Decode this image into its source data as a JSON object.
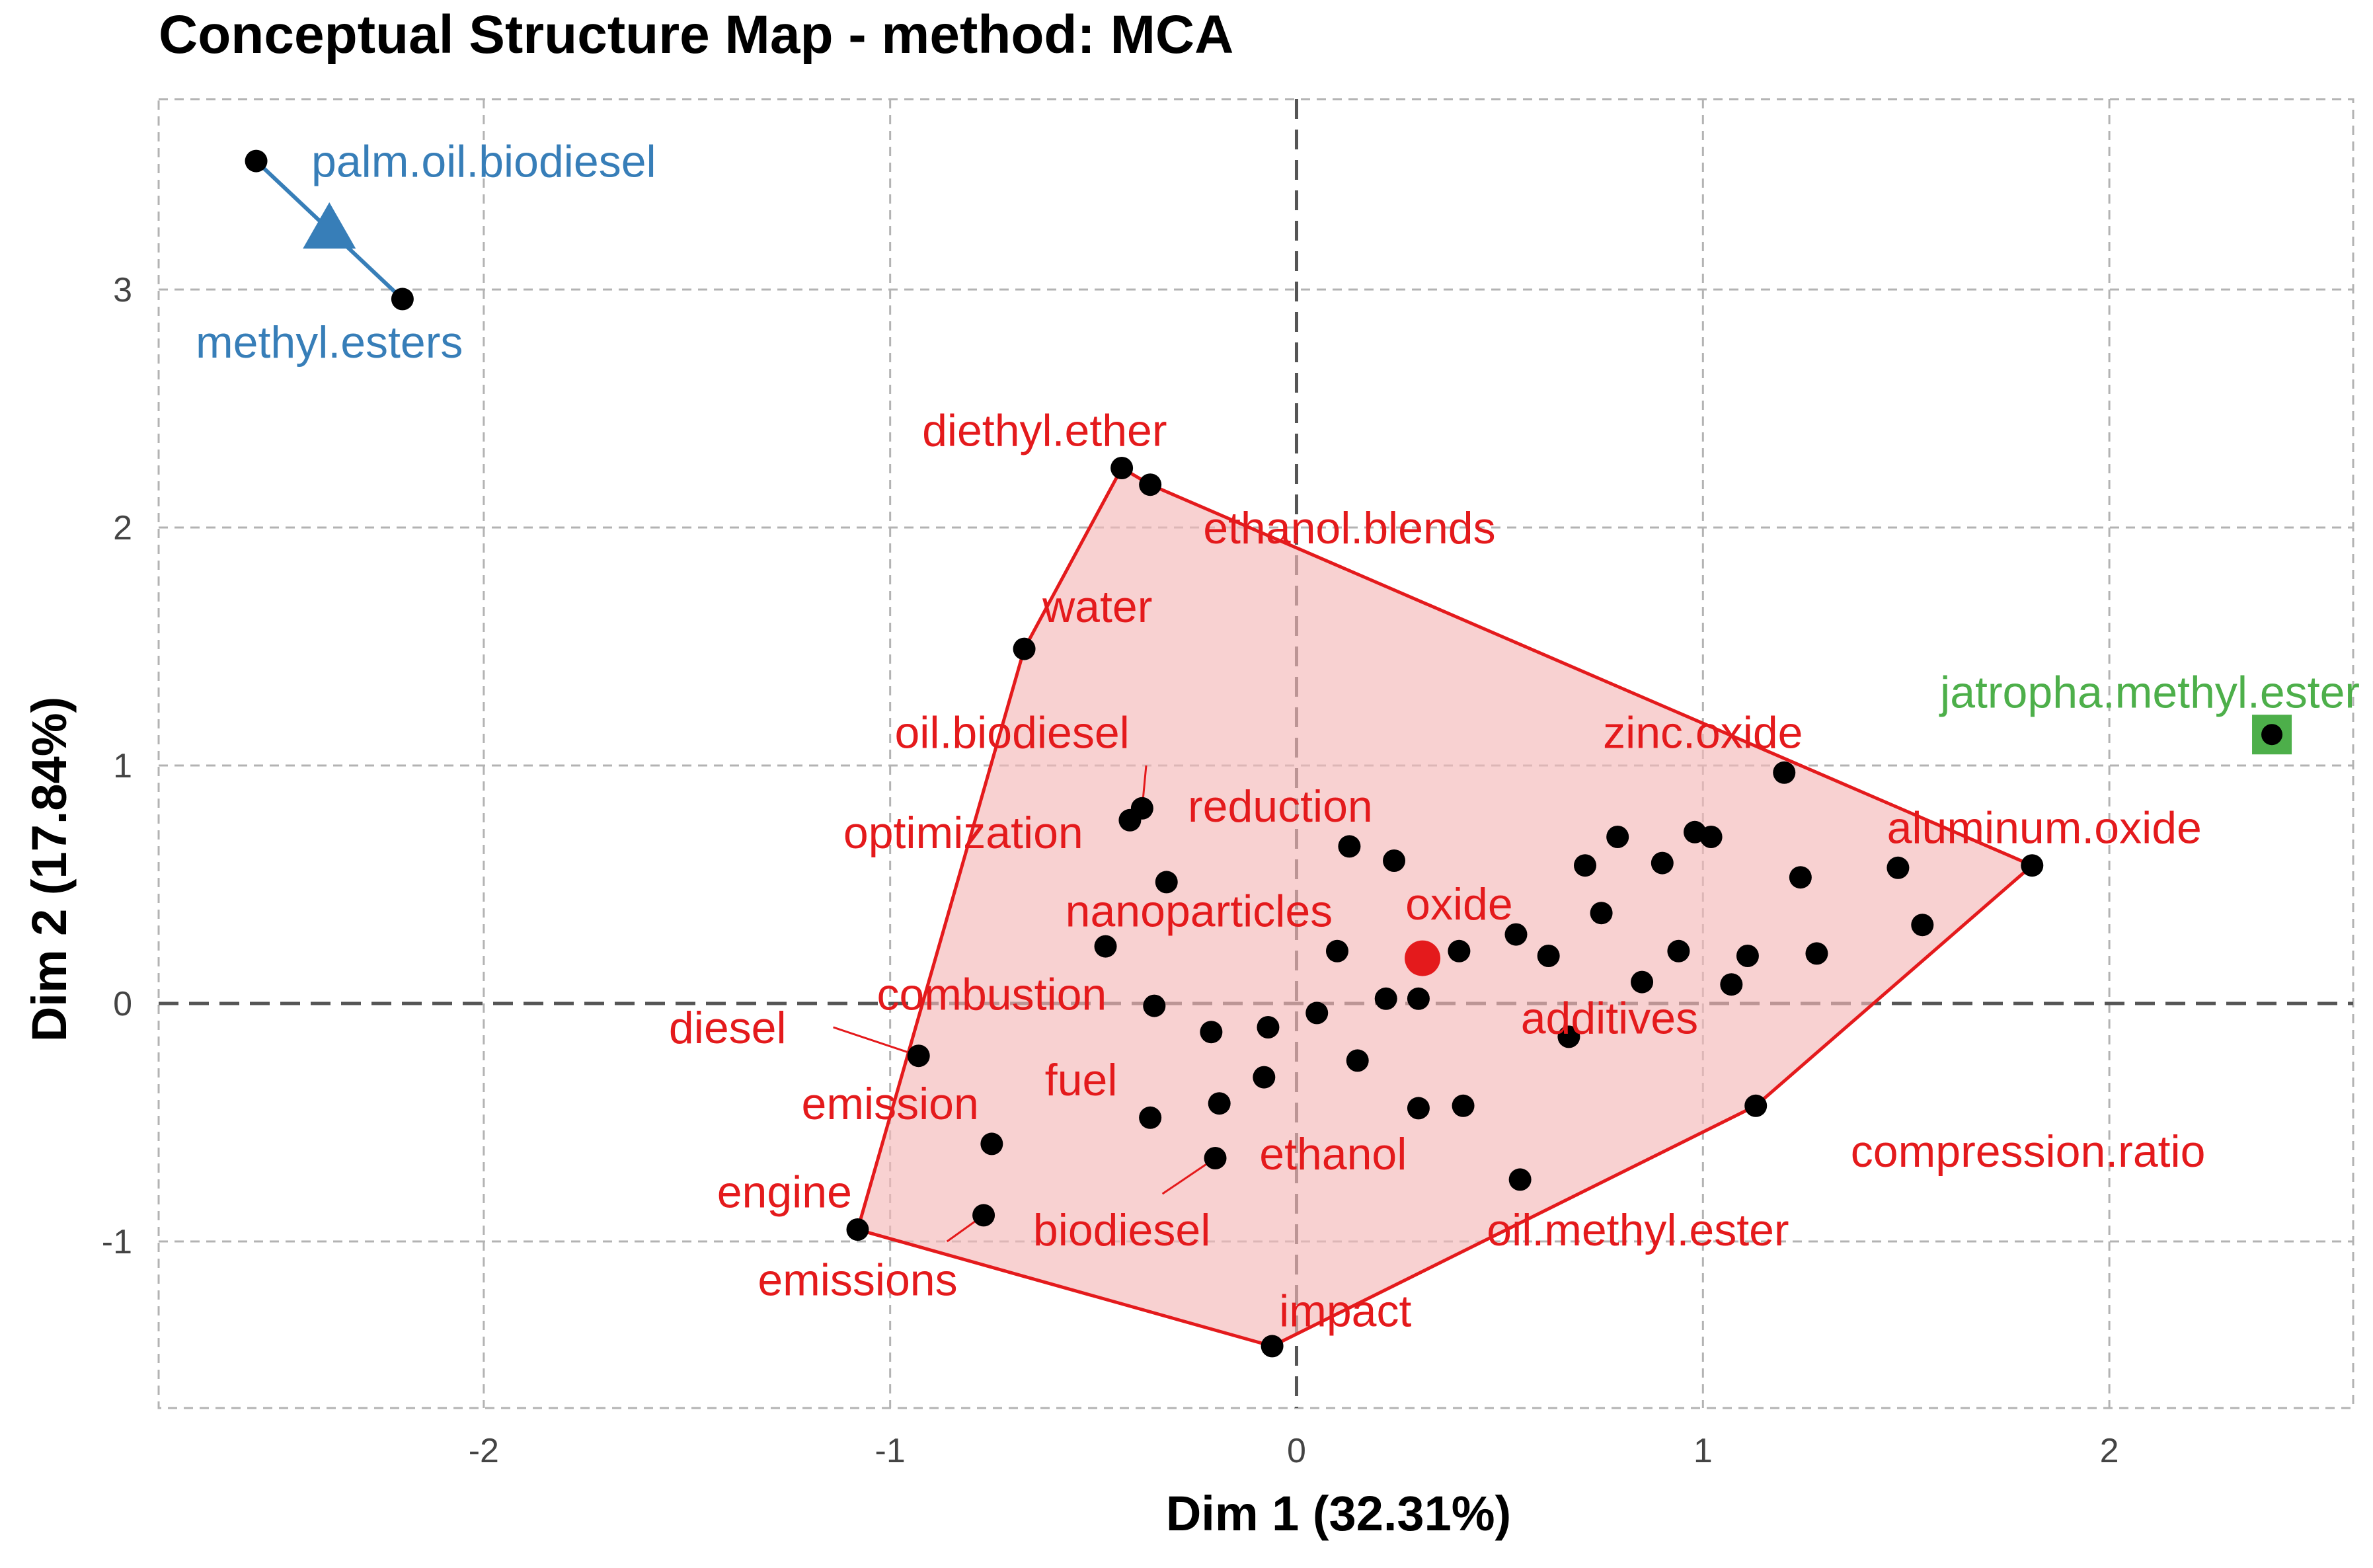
{
  "chart_data": {
    "type": "scatter",
    "title": "Conceptual Structure Map - method: MCA",
    "xlabel": "Dim 1 (32.31%)",
    "ylabel": "Dim 2 (17.84%)",
    "xlim": [
      -2.8,
      2.6
    ],
    "ylim": [
      -1.7,
      3.8
    ],
    "x_ticks": [
      -2,
      -1,
      0,
      1,
      2
    ],
    "y_ticks": [
      -1,
      0,
      1,
      2,
      3
    ],
    "grid": true,
    "legend": "none",
    "clusters": [
      {
        "color": "#e41a1c",
        "fill": "#f4b8b9",
        "centroid": [
          0.31,
          0.19
        ],
        "hull": [
          [
            -0.43,
            2.25
          ],
          [
            -0.36,
            2.18
          ],
          [
            1.81,
            0.58
          ],
          [
            1.13,
            -0.43
          ],
          [
            -0.06,
            -1.44
          ],
          [
            -1.08,
            -0.95
          ],
          [
            -0.67,
            1.49
          ]
        ],
        "points": [
          {
            "x": -0.43,
            "y": 2.25,
            "label": "diethyl.ether",
            "lx": -0.62,
            "ly": 2.41
          },
          {
            "x": -0.36,
            "y": 2.18,
            "label": "ethanol.blends",
            "lx": 0.13,
            "ly": 2.0
          },
          {
            "x": -0.67,
            "y": 1.49,
            "label": "water",
            "lx": -0.49,
            "ly": 1.67
          },
          {
            "x": -0.38,
            "y": 0.82,
            "label": "oil.biodiesel",
            "lx": -0.7,
            "ly": 1.14
          },
          {
            "x": -0.41,
            "y": 0.77,
            "label": "reduction",
            "lx": -0.04,
            "ly": 0.83
          },
          {
            "x": -0.32,
            "y": 0.51,
            "label": "optimization",
            "lx": -0.82,
            "ly": 0.72
          },
          {
            "x": -0.47,
            "y": 0.24,
            "label": "nanoparticles",
            "lx": -0.24,
            "ly": 0.39
          },
          {
            "x": 0.54,
            "y": 0.29,
            "label": "oxide",
            "lx": 0.4,
            "ly": 0.42
          },
          {
            "x": -0.35,
            "y": -0.01,
            "label": "combustion",
            "lx": -0.75,
            "ly": 0.04
          },
          {
            "x": -0.93,
            "y": -0.22,
            "label": "diesel",
            "lx": -1.4,
            "ly": -0.1
          },
          {
            "x": -0.75,
            "y": -0.59,
            "label": "emission",
            "lx": -1.0,
            "ly": -0.42
          },
          {
            "x": -1.08,
            "y": -0.95,
            "label": "engine",
            "lx": -1.26,
            "ly": -0.79
          },
          {
            "x": -0.77,
            "y": -0.89,
            "label": "emissions",
            "lx": -1.08,
            "ly": -1.16
          },
          {
            "x": -0.36,
            "y": -0.48,
            "label": "fuel",
            "lx": -0.53,
            "ly": -0.32
          },
          {
            "x": -0.2,
            "y": -0.65,
            "label": "ethanol",
            "lx": 0.09,
            "ly": -0.63
          },
          {
            "x": -0.08,
            "y": -0.31,
            "label": "biodiesel",
            "lx": -0.43,
            "ly": -0.95
          },
          {
            "x": -0.06,
            "y": -1.44,
            "label": "impact",
            "lx": 0.12,
            "ly": -1.29
          },
          {
            "x": 0.55,
            "y": -0.74,
            "label": "oil.methyl.ester",
            "lx": 0.84,
            "ly": -0.95
          },
          {
            "x": 1.13,
            "y": -0.43,
            "label": "compression.ratio",
            "lx": 1.8,
            "ly": -0.62
          },
          {
            "x": 0.67,
            "y": -0.14,
            "label": "additives",
            "lx": 0.77,
            "ly": -0.06
          },
          {
            "x": 1.2,
            "y": 0.97,
            "label": "zinc.oxide",
            "lx": 1.0,
            "ly": 1.14
          },
          {
            "x": 1.81,
            "y": 0.58,
            "label": "aluminum.oxide",
            "lx": 1.84,
            "ly": 0.74
          },
          {
            "x": 0.13,
            "y": 0.66,
            "label": ""
          },
          {
            "x": 0.24,
            "y": 0.6,
            "label": ""
          },
          {
            "x": 0.71,
            "y": 0.58,
            "label": ""
          },
          {
            "x": 0.79,
            "y": 0.7,
            "label": ""
          },
          {
            "x": 0.75,
            "y": 0.38,
            "label": ""
          },
          {
            "x": 0.9,
            "y": 0.59,
            "label": ""
          },
          {
            "x": 0.98,
            "y": 0.72,
            "label": ""
          },
          {
            "x": 1.02,
            "y": 0.7,
            "label": ""
          },
          {
            "x": 1.24,
            "y": 0.53,
            "label": ""
          },
          {
            "x": 1.48,
            "y": 0.57,
            "label": ""
          },
          {
            "x": 1.54,
            "y": 0.33,
            "label": ""
          },
          {
            "x": 0.1,
            "y": 0.22,
            "label": ""
          },
          {
            "x": 0.4,
            "y": 0.22,
            "label": ""
          },
          {
            "x": 0.62,
            "y": 0.2,
            "label": ""
          },
          {
            "x": 0.85,
            "y": 0.09,
            "label": ""
          },
          {
            "x": 0.94,
            "y": 0.22,
            "label": ""
          },
          {
            "x": 1.07,
            "y": 0.08,
            "label": ""
          },
          {
            "x": 1.11,
            "y": 0.2,
            "label": ""
          },
          {
            "x": 1.28,
            "y": 0.21,
            "label": ""
          },
          {
            "x": 0.22,
            "y": 0.02,
            "label": ""
          },
          {
            "x": 0.3,
            "y": 0.02,
            "label": ""
          },
          {
            "x": 0.05,
            "y": -0.04,
            "label": ""
          },
          {
            "x": -0.21,
            "y": -0.12,
            "label": ""
          },
          {
            "x": -0.07,
            "y": -0.1,
            "label": ""
          },
          {
            "x": -0.19,
            "y": -0.42,
            "label": ""
          },
          {
            "x": 0.15,
            "y": -0.24,
            "label": ""
          },
          {
            "x": 0.3,
            "y": -0.44,
            "label": ""
          },
          {
            "x": 0.41,
            "y": -0.43,
            "label": ""
          }
        ]
      },
      {
        "color": "#377eb8",
        "centroid": [
          -2.38,
          3.25
        ],
        "points": [
          {
            "x": -2.56,
            "y": 3.54,
            "label": "palm.oil.biodiesel",
            "lx": -2.0,
            "ly": 3.54
          },
          {
            "x": -2.2,
            "y": 2.96,
            "label": "methyl.esters",
            "lx": -2.38,
            "ly": 2.78
          }
        ]
      },
      {
        "color": "#4daf4a",
        "centroid": [
          2.4,
          1.13
        ],
        "points": [
          {
            "x": 2.4,
            "y": 1.13,
            "label": "jatropha.methyl.ester",
            "lx": 2.1,
            "ly": 1.31
          }
        ]
      }
    ],
    "leader_lines": [
      [
        [
          -0.38,
          0.82
        ],
        [
          -0.37,
          1.0
        ]
      ],
      [
        [
          -0.93,
          -0.22
        ],
        [
          -1.14,
          -0.1
        ]
      ],
      [
        [
          -0.77,
          -0.89
        ],
        [
          -0.86,
          -1.0
        ]
      ],
      [
        [
          -0.2,
          -0.65
        ],
        [
          -0.33,
          -0.8
        ]
      ]
    ]
  }
}
